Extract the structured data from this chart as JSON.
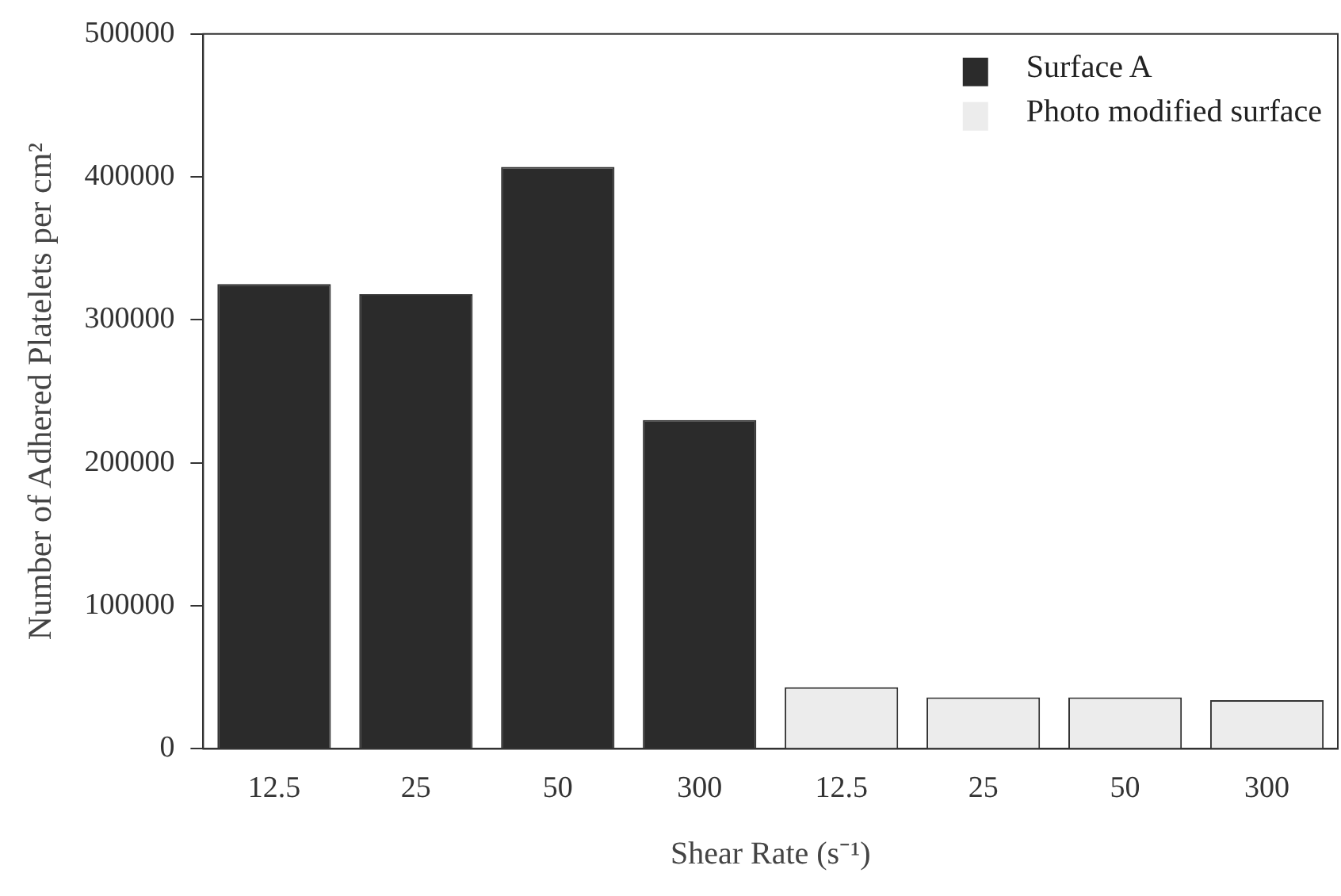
{
  "chart_data": {
    "type": "bar",
    "xlabel": "Shear Rate (s⁻¹)",
    "ylabel": "Number of Adhered Platelets per cm²",
    "categories": [
      "12.5",
      "25",
      "50",
      "300",
      "12.5",
      "25",
      "50",
      "300"
    ],
    "series": [
      {
        "name": "Surface A",
        "color": "#2b2b2b",
        "values": [
          325000,
          318000,
          407000,
          230000,
          null,
          null,
          null,
          null
        ]
      },
      {
        "name": "Photo modified surface",
        "color": "#ececec",
        "values": [
          null,
          null,
          null,
          null,
          43000,
          36000,
          36000,
          34000
        ]
      }
    ],
    "ylim": [
      0,
      500000
    ],
    "yticks": [
      0,
      100000,
      200000,
      300000,
      400000,
      500000
    ],
    "grid": false,
    "legend": "top right"
  }
}
